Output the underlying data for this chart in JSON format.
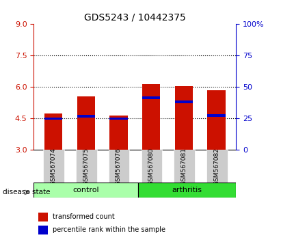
{
  "title": "GDS5243 / 10442375",
  "samples": [
    "GSM567074",
    "GSM567075",
    "GSM567076",
    "GSM567080",
    "GSM567081",
    "GSM567082"
  ],
  "groups": [
    "control",
    "control",
    "control",
    "arthritis",
    "arthritis",
    "arthritis"
  ],
  "bar_values": [
    4.75,
    5.55,
    4.65,
    6.15,
    6.05,
    5.85
  ],
  "blue_marker_values": [
    4.5,
    4.62,
    4.5,
    5.5,
    5.3,
    4.65
  ],
  "ylim_left": [
    3,
    9
  ],
  "ylim_right": [
    0,
    100
  ],
  "yticks_left": [
    3,
    4.5,
    6,
    7.5,
    9
  ],
  "yticks_right": [
    0,
    25,
    50,
    75,
    100
  ],
  "bar_color": "#cc1100",
  "blue_color": "#0000cc",
  "control_color": "#aaffaa",
  "arthritis_color": "#33dd33",
  "label_bg_color": "#cccccc",
  "grid_color": "#000000",
  "bar_width": 0.55,
  "legend_red_label": "transformed count",
  "legend_blue_label": "percentile rank within the sample",
  "disease_state_label": "disease state",
  "group_labels": [
    "control",
    "arthritis"
  ],
  "group_ranges": [
    [
      0,
      3
    ],
    [
      3,
      6
    ]
  ],
  "ylabel_left_color": "#cc1100",
  "ylabel_right_color": "#0000cc"
}
